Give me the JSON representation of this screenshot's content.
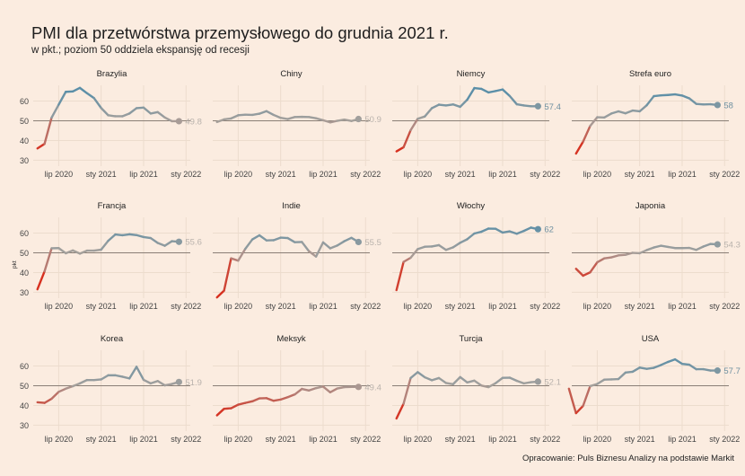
{
  "header": {
    "title": "PMI dla przetwórstwa przemysłowego do grudnia 2021 r.",
    "subtitle": "w pkt.; poziom 50 oddziela ekspansję od recesji"
  },
  "caption": "Opracowanie: Puls Biznesu Analizy na podstawie Markit",
  "colors": {
    "background": "#fbece0",
    "grid": "#ecdccd",
    "reference_line": "#8a7f76",
    "low": "#d7301f",
    "mid": "#a6a09b",
    "high": "#5b8fa8",
    "label_text": "#333333",
    "end_label_low": "#b9b2ac",
    "end_label_high": "#6d8fa0"
  },
  "chart_data": {
    "type": "line",
    "title": "PMI dla przetwórstwa przemysłowego do grudnia 2021 r.",
    "subtitle": "w pkt.; poziom 50 oddziela ekspansję od recesji",
    "ylabel": "pkt",
    "xlabel": "",
    "ylim": [
      27,
      68
    ],
    "yticks": [
      30,
      40,
      50,
      60
    ],
    "reference_line": 50,
    "grid": true,
    "x_ticks": [
      {
        "label": "lip 2020",
        "month_index": 6
      },
      {
        "label": "sty 2021",
        "month_index": 12
      },
      {
        "label": "lip 2021",
        "month_index": 18
      },
      {
        "label": "sty 2022",
        "month_index": 24
      }
    ],
    "x_unit": "months since January 2020",
    "xlim": [
      2.4,
      24.6
    ],
    "color_scale": "values below 50 shade to red, near 50 grey, above 50 blue",
    "panels": [
      {
        "name": "Brazylia",
        "start_month_index": 3,
        "end_label": "49.8",
        "values": [
          36.0,
          38.3,
          51.6,
          58.2,
          64.7,
          64.9,
          66.7,
          64.0,
          61.5,
          56.5,
          52.8,
          52.3,
          52.3,
          53.7,
          56.4,
          56.7,
          53.7,
          54.4,
          51.7,
          49.8,
          49.8
        ]
      },
      {
        "name": "Chiny",
        "start_month_index": 3,
        "end_label": "50.9",
        "values": [
          49.4,
          50.7,
          51.2,
          52.8,
          53.1,
          53.0,
          53.6,
          54.9,
          53.0,
          51.5,
          50.9,
          51.9,
          52.0,
          51.9,
          51.3,
          50.3,
          49.2,
          50.0,
          50.6,
          49.9,
          50.9
        ]
      },
      {
        "name": "Niemcy",
        "start_month_index": 3,
        "end_label": "57.4",
        "values": [
          34.5,
          36.6,
          45.2,
          51.0,
          52.2,
          56.4,
          58.2,
          57.8,
          58.3,
          57.1,
          60.7,
          66.6,
          66.2,
          64.4,
          65.1,
          65.9,
          62.6,
          58.4,
          57.8,
          57.4,
          57.4
        ]
      },
      {
        "name": "Strefa euro",
        "start_month_index": 3,
        "end_label": "58",
        "values": [
          33.4,
          39.4,
          47.4,
          51.8,
          51.7,
          53.7,
          54.8,
          53.8,
          55.2,
          54.8,
          57.9,
          62.5,
          62.9,
          63.1,
          63.4,
          62.8,
          61.4,
          58.6,
          58.3,
          58.4,
          58.0
        ]
      },
      {
        "name": "Francja",
        "start_month_index": 3,
        "end_label": "55.6",
        "values": [
          31.5,
          40.6,
          52.3,
          52.4,
          49.8,
          51.2,
          49.6,
          51.1,
          51.1,
          51.6,
          56.1,
          59.3,
          58.9,
          59.4,
          59.0,
          58.0,
          57.5,
          55.0,
          53.6,
          55.9,
          55.6
        ]
      },
      {
        "name": "Indie",
        "start_month_index": 3,
        "end_label": "55.5",
        "values": [
          27.4,
          30.8,
          47.2,
          46.0,
          52.0,
          56.8,
          58.9,
          56.3,
          56.4,
          57.7,
          57.5,
          55.4,
          55.5,
          50.8,
          48.1,
          55.3,
          52.3,
          53.7,
          55.9,
          57.6,
          55.5
        ]
      },
      {
        "name": "Włochy",
        "start_month_index": 3,
        "end_label": "62",
        "values": [
          31.1,
          45.4,
          47.5,
          51.9,
          53.1,
          53.2,
          53.9,
          51.5,
          52.8,
          55.1,
          56.9,
          59.8,
          60.7,
          62.3,
          62.2,
          60.3,
          60.9,
          59.7,
          61.1,
          62.8,
          62.0
        ]
      },
      {
        "name": "Japonia",
        "start_month_index": 3,
        "end_label": "54.3",
        "values": [
          41.9,
          38.4,
          40.1,
          45.2,
          47.2,
          47.7,
          48.7,
          49.0,
          50.0,
          49.8,
          51.4,
          52.7,
          53.6,
          53.0,
          52.4,
          52.4,
          52.5,
          51.5,
          53.2,
          54.5,
          54.3
        ]
      },
      {
        "name": "Korea",
        "start_month_index": 3,
        "end_label": "51.9",
        "values": [
          41.6,
          41.3,
          43.4,
          46.9,
          48.5,
          49.8,
          51.2,
          52.9,
          52.9,
          53.2,
          55.3,
          55.3,
          54.6,
          53.7,
          59.6,
          53.0,
          51.2,
          52.4,
          50.2,
          50.9,
          51.9
        ]
      },
      {
        "name": "Meksyk",
        "start_month_index": 3,
        "end_label": "49.4",
        "values": [
          35.0,
          38.3,
          38.6,
          40.4,
          41.3,
          42.1,
          43.6,
          43.7,
          42.4,
          43.0,
          44.2,
          45.6,
          48.4,
          47.6,
          48.8,
          49.6,
          46.7,
          48.6,
          49.3,
          49.4,
          49.4
        ]
      },
      {
        "name": "Turcja",
        "start_month_index": 3,
        "end_label": "52.1",
        "values": [
          33.4,
          40.9,
          53.9,
          56.9,
          54.3,
          52.8,
          53.9,
          51.4,
          50.8,
          54.4,
          51.7,
          52.6,
          50.1,
          49.3,
          51.3,
          54.0,
          54.1,
          52.5,
          51.2,
          51.8,
          52.1
        ]
      },
      {
        "name": "USA",
        "start_month_index": 2,
        "end_label": "57.7",
        "values": [
          48.5,
          36.1,
          39.8,
          49.8,
          50.9,
          53.1,
          53.2,
          53.4,
          56.7,
          57.1,
          59.2,
          58.6,
          59.1,
          60.5,
          62.1,
          63.4,
          61.1,
          60.7,
          58.4,
          58.4,
          57.7,
          57.7
        ]
      }
    ]
  }
}
